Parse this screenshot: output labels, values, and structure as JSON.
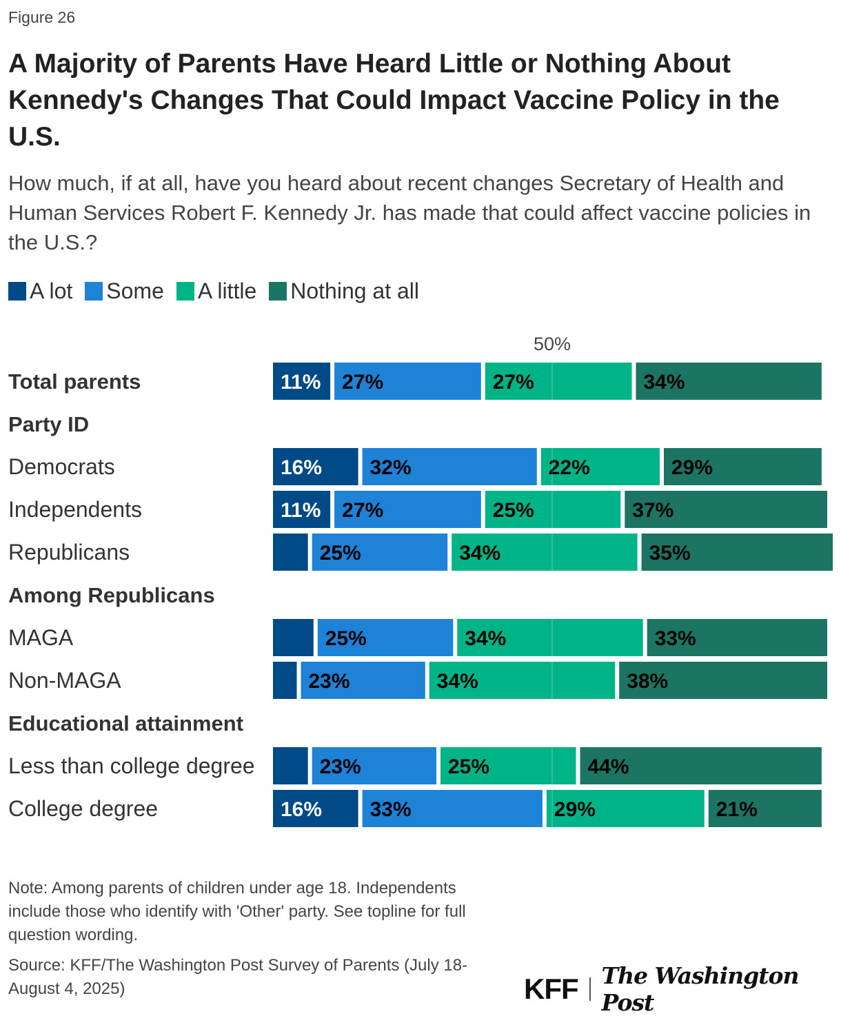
{
  "figure_label": "Figure 26",
  "chart_data": {
    "type": "bar",
    "orientation": "horizontal",
    "stacked": true,
    "title": "A Majority of Parents Have Heard Little or Nothing About Kennedy's Changes That Could Impact Vaccine Policy in the U.S.",
    "subtitle": "How much, if at all, have you heard about recent changes Secretary of Health and Human Services Robert F. Kennedy Jr. has made that could affect vaccine policies in the U.S.?",
    "reference_line": {
      "value": 50,
      "label": "50%"
    },
    "legend_position": "top-left",
    "xlim": [
      0,
      100
    ],
    "series": [
      {
        "name": "A lot",
        "color": "#004a87"
      },
      {
        "name": "Some",
        "color": "#1e82d6"
      },
      {
        "name": "A little",
        "color": "#00b487"
      },
      {
        "name": "Nothing at all",
        "color": "#1b7562"
      }
    ],
    "rows": [
      {
        "label": "Total parents",
        "bold": true,
        "values": [
          11,
          27,
          27,
          34
        ],
        "show_labels": [
          true,
          true,
          true,
          true
        ]
      },
      {
        "label": "Party ID",
        "header": true
      },
      {
        "label": "Democrats",
        "values": [
          16,
          32,
          22,
          29
        ],
        "show_labels": [
          true,
          true,
          true,
          true
        ]
      },
      {
        "label": "Independents",
        "values": [
          11,
          27,
          25,
          37
        ],
        "show_labels": [
          true,
          true,
          true,
          true
        ]
      },
      {
        "label": "Republicans",
        "values": [
          7,
          25,
          34,
          35
        ],
        "show_labels": [
          false,
          true,
          true,
          true
        ]
      },
      {
        "label": "Among Republicans",
        "header": true
      },
      {
        "label": "MAGA",
        "values": [
          8,
          25,
          34,
          33
        ],
        "show_labels": [
          false,
          true,
          true,
          true
        ]
      },
      {
        "label": "Non-MAGA",
        "values": [
          5,
          23,
          34,
          38
        ],
        "show_labels": [
          false,
          true,
          true,
          true
        ]
      },
      {
        "label": "Educational attainment",
        "header": true
      },
      {
        "label": "Less than college degree",
        "values": [
          7,
          23,
          25,
          44
        ],
        "show_labels": [
          false,
          true,
          true,
          true
        ]
      },
      {
        "label": "College degree",
        "values": [
          16,
          33,
          29,
          21
        ],
        "show_labels": [
          true,
          true,
          true,
          true
        ]
      }
    ]
  },
  "note": "Note: Among parents of children under age 18. Independents include those who identify with 'Other' party. See topline for full question wording.",
  "source": "Source: KFF/The Washington Post Survey of Parents (July 18-August 4, 2025)",
  "logos": {
    "kff": "KFF",
    "wapo": "The Washington Post"
  }
}
